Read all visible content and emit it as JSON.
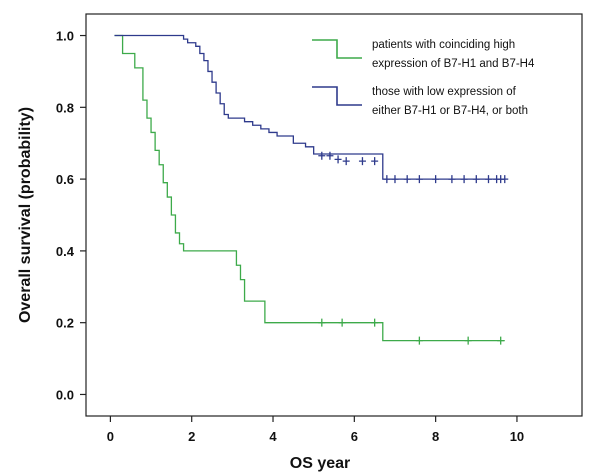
{
  "chart_data": {
    "type": "line",
    "subtype": "step",
    "xlabel": "OS  year",
    "ylabel": "Overall survival (probability)",
    "xlim": [
      -0.6,
      11.6
    ],
    "ylim": [
      -0.06,
      1.06
    ],
    "xticks": [
      0,
      2,
      4,
      6,
      8,
      10
    ],
    "yticks": [
      0.0,
      0.2,
      0.4,
      0.6,
      0.8,
      1.0
    ],
    "xtick_labels": [
      "0",
      "2",
      "4",
      "6",
      "8",
      "10"
    ],
    "ytick_labels": [
      "0.0",
      "0.2",
      "0.4",
      "0.6",
      "0.8",
      "1.0"
    ],
    "grid": false,
    "legend_position": "top-right",
    "series": [
      {
        "name": "patients with coinciding high expression of B7-H1 and B7-H4",
        "legend_lines": [
          "patients with coinciding high",
          "expression of B7-H1 and B7-H4"
        ],
        "color": "#3daa4a",
        "x": [
          0.1,
          0.3,
          0.6,
          0.8,
          0.9,
          1.0,
          1.1,
          1.2,
          1.3,
          1.4,
          1.5,
          1.6,
          1.7,
          1.8,
          1.9,
          2.0,
          3.1,
          3.2,
          3.3,
          3.5,
          3.8,
          6.7,
          9.7
        ],
        "y": [
          1.0,
          0.95,
          0.91,
          0.82,
          0.77,
          0.73,
          0.68,
          0.64,
          0.59,
          0.55,
          0.5,
          0.45,
          0.42,
          0.4,
          0.4,
          0.4,
          0.36,
          0.32,
          0.26,
          0.26,
          0.2,
          0.15,
          0.15
        ],
        "censored": [
          [
            5.2,
            0.2
          ],
          [
            5.7,
            0.2
          ],
          [
            6.5,
            0.2
          ],
          [
            7.6,
            0.15
          ],
          [
            8.8,
            0.15
          ],
          [
            9.6,
            0.15
          ]
        ]
      },
      {
        "name": "those with low expression of either B7-H1 or B7-H4, or both",
        "legend_lines": [
          "those with low expression of",
          "either B7-H1 or B7-H4, or both"
        ],
        "color": "#2e3a8c",
        "x": [
          0.1,
          1.8,
          1.9,
          2.1,
          2.2,
          2.3,
          2.4,
          2.5,
          2.6,
          2.7,
          2.8,
          2.9,
          3.3,
          3.5,
          3.7,
          3.9,
          4.1,
          4.5,
          4.8,
          5.0,
          6.7,
          9.7
        ],
        "y": [
          1.0,
          0.99,
          0.98,
          0.97,
          0.95,
          0.93,
          0.9,
          0.87,
          0.84,
          0.81,
          0.78,
          0.77,
          0.76,
          0.75,
          0.74,
          0.73,
          0.72,
          0.7,
          0.69,
          0.67,
          0.6,
          0.6
        ],
        "censored": [
          [
            5.2,
            0.665
          ],
          [
            5.4,
            0.665
          ],
          [
            5.6,
            0.655
          ],
          [
            5.8,
            0.65
          ],
          [
            6.2,
            0.65
          ],
          [
            6.5,
            0.65
          ],
          [
            6.8,
            0.6
          ],
          [
            7.0,
            0.6
          ],
          [
            7.3,
            0.6
          ],
          [
            7.6,
            0.6
          ],
          [
            8.0,
            0.6
          ],
          [
            8.4,
            0.6
          ],
          [
            8.7,
            0.6
          ],
          [
            9.0,
            0.6
          ],
          [
            9.3,
            0.6
          ],
          [
            9.5,
            0.6
          ],
          [
            9.6,
            0.6
          ],
          [
            9.7,
            0.6
          ]
        ]
      }
    ]
  }
}
